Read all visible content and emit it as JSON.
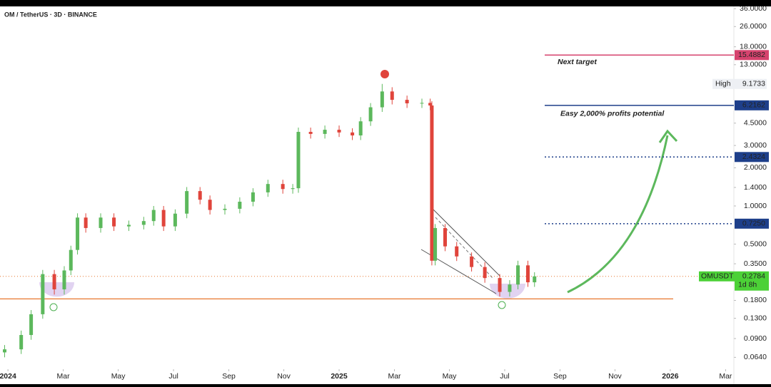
{
  "chart_data": {
    "type": "candlestick",
    "title": "OM / TetherUS · 3D · BINANCE",
    "log_scale": true,
    "up_color": "#5cb85c",
    "down_color": "#e0443b",
    "x": [
      2023.99,
      2024.04,
      2024.07,
      2024.105,
      2024.14,
      2024.17,
      2024.19,
      2024.21,
      2024.235,
      2024.28,
      2024.32,
      2024.365,
      2024.41,
      2024.44,
      2024.47,
      2024.505,
      2024.54,
      2024.58,
      2024.61,
      2024.655,
      2024.7,
      2024.74,
      2024.785,
      2024.83,
      2024.86,
      2024.877,
      2024.914,
      2024.957,
      2025.0,
      2025.04,
      2025.065,
      2025.095,
      2025.13,
      2025.16,
      2025.205,
      2025.25,
      2025.275,
      2025.28,
      2025.29,
      2025.32,
      2025.355,
      2025.4,
      2025.44,
      2025.485,
      2025.515,
      2025.54,
      2025.57,
      2025.59
    ],
    "open": [
      0.07,
      0.074,
      0.096,
      0.14,
      0.29,
      0.22,
      0.31,
      0.45,
      0.81,
      0.67,
      0.81,
      0.69,
      0.71,
      0.76,
      0.93,
      0.69,
      0.87,
      1.31,
      1.12,
      0.93,
      0.95,
      1.08,
      1.28,
      1.49,
      1.36,
      1.38,
      3.84,
      3.7,
      3.99,
      3.8,
      3.6,
      4.65,
      6.0,
      8.0,
      6.87,
      6.45,
      6.5,
      6.2,
      0.37,
      0.67,
      0.48,
      0.4,
      0.33,
      0.27,
      0.21,
      0.24,
      0.34,
      0.25
    ],
    "high": [
      0.08,
      0.104,
      0.151,
      0.313,
      0.313,
      0.335,
      0.486,
      0.875,
      0.875,
      0.875,
      0.875,
      0.767,
      0.821,
      1.0,
      1.0,
      0.94,
      1.41,
      1.41,
      1.21,
      1.03,
      1.17,
      1.38,
      1.61,
      1.61,
      1.49,
      4.15,
      4.15,
      4.31,
      4.31,
      4.1,
      5.02,
      6.48,
      9.1733,
      8.64,
      7.42,
      7.02,
      7.02,
      6.7,
      0.72,
      0.72,
      0.52,
      0.43,
      0.36,
      0.29,
      0.26,
      0.37,
      0.37,
      0.3
    ],
    "low": [
      0.064,
      0.068,
      0.088,
      0.129,
      0.2,
      0.2,
      0.285,
      0.414,
      0.616,
      0.616,
      0.635,
      0.635,
      0.653,
      0.699,
      0.635,
      0.635,
      0.8,
      1.03,
      0.856,
      0.856,
      0.874,
      0.994,
      1.18,
      1.25,
      1.25,
      1.27,
      3.4,
      3.4,
      3.5,
      3.31,
      3.31,
      4.28,
      5.52,
      6.32,
      5.93,
      5.93,
      5.7,
      0.34,
      0.34,
      0.44,
      0.368,
      0.304,
      0.248,
      0.193,
      0.193,
      0.22,
      0.23,
      0.23
    ],
    "close": [
      0.074,
      0.096,
      0.14,
      0.29,
      0.22,
      0.31,
      0.45,
      0.81,
      0.67,
      0.81,
      0.69,
      0.71,
      0.76,
      0.93,
      0.69,
      0.87,
      1.31,
      1.12,
      0.93,
      0.95,
      1.08,
      1.28,
      1.49,
      1.36,
      1.38,
      3.84,
      3.7,
      3.99,
      3.8,
      3.6,
      4.65,
      6.0,
      8.0,
      6.87,
      6.45,
      6.5,
      6.2,
      0.37,
      0.67,
      0.48,
      0.4,
      0.33,
      0.27,
      0.21,
      0.24,
      0.34,
      0.25,
      0.2784
    ],
    "xlim": [
      2023.976,
      2026.192
    ],
    "xticks": [
      {
        "value": 2024,
        "label": "2024"
      },
      {
        "value": 2024.167,
        "label": "Mar"
      },
      {
        "value": 2024.333,
        "label": "May"
      },
      {
        "value": 2024.5,
        "label": "Jul"
      },
      {
        "value": 2024.667,
        "label": "Sep"
      },
      {
        "value": 2024.833,
        "label": "Nov"
      },
      {
        "value": 2025,
        "label": "2025"
      },
      {
        "value": 2025.167,
        "label": "Mar"
      },
      {
        "value": 2025.333,
        "label": "May"
      },
      {
        "value": 2025.5,
        "label": "Jul"
      },
      {
        "value": 2025.667,
        "label": "Sep"
      },
      {
        "value": 2025.833,
        "label": "Nov"
      },
      {
        "value": 2026,
        "label": "2026"
      },
      {
        "value": 2026.167,
        "label": "Mar"
      }
    ],
    "ylim": [
      0.0516,
      37
    ],
    "yticks": [
      {
        "value": 36,
        "label": "36.0000"
      },
      {
        "value": 26,
        "label": "26.0000"
      },
      {
        "value": 18,
        "label": "18.0000"
      },
      {
        "value": 13,
        "label": "13.0000"
      },
      {
        "value": 4.5,
        "label": "4.5000"
      },
      {
        "value": 3,
        "label": "3.0000"
      },
      {
        "value": 2,
        "label": "2.0000"
      },
      {
        "value": 1.4,
        "label": "1.4000"
      },
      {
        "value": 1,
        "label": "1.0000"
      },
      {
        "value": 0.5,
        "label": "0.5000"
      },
      {
        "value": 0.35,
        "label": "0.3500"
      },
      {
        "value": 0.18,
        "label": "0.1800"
      },
      {
        "value": 0.13,
        "label": "0.1300"
      },
      {
        "value": 0.09,
        "label": "0.0900"
      },
      {
        "value": 0.064,
        "label": "0.0640"
      }
    ],
    "levels": [
      {
        "price": 15.4882,
        "color": "#d6436e",
        "style": "solid",
        "text": "Next target"
      },
      {
        "price": 6.2162,
        "color": "#1e3f8a",
        "style": "solid",
        "text": "Easy 2,000% profits potential"
      },
      {
        "price": 2.4324,
        "color": "#1e3f8a",
        "style": "dotted"
      },
      {
        "price": {
          "value": 0.725,
          "label": "0.7250"
        },
        "color": "#1e3f8a",
        "style": "dotted"
      }
    ],
    "high_marker": {
      "label": "High",
      "price": 9.1733
    },
    "last_price": {
      "name": "OMUSDT",
      "price": 0.2784,
      "countdown": "1d 8h",
      "color": "#4cd137"
    },
    "support": 0.185,
    "support_color": "#e8772e"
  }
}
